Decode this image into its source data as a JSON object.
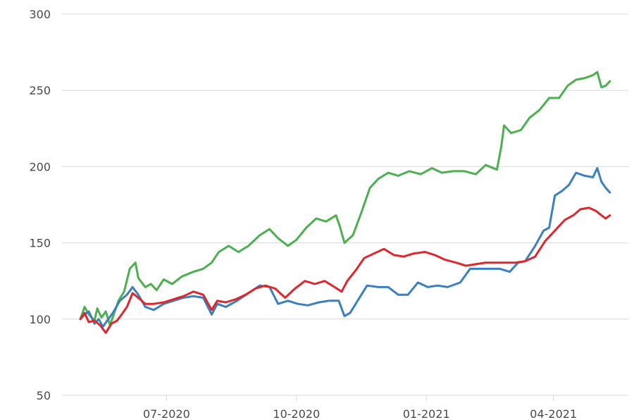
{
  "chart_data": {
    "type": "line",
    "title": "",
    "xlabel": "",
    "ylabel": "",
    "ylim": [
      50,
      300
    ],
    "xlim": [
      "2020-04-18",
      "2021-05-24"
    ],
    "yticks": [
      "50",
      "100",
      "150",
      "200",
      "250",
      "300"
    ],
    "xticks": [
      {
        "date": "2020-07-01",
        "label": "07-2020"
      },
      {
        "date": "2020-10-01",
        "label": "10-2020"
      },
      {
        "date": "2021-01-01",
        "label": "01-2021"
      },
      {
        "date": "2021-04-01",
        "label": "04-2021"
      }
    ],
    "grid": true,
    "legend": "none",
    "series": [
      {
        "color": "#4caf50",
        "points": [
          [
            "2020-05-01",
            100
          ],
          [
            "2020-05-04",
            108
          ],
          [
            "2020-05-07",
            103
          ],
          [
            "2020-05-11",
            99
          ],
          [
            "2020-05-13",
            107
          ],
          [
            "2020-05-16",
            101
          ],
          [
            "2020-05-19",
            105
          ],
          [
            "2020-05-22",
            96
          ],
          [
            "2020-05-25",
            104
          ],
          [
            "2020-05-28",
            112
          ],
          [
            "2020-06-01",
            118
          ],
          [
            "2020-06-05",
            133
          ],
          [
            "2020-06-09",
            137
          ],
          [
            "2020-06-11",
            127
          ],
          [
            "2020-06-16",
            121
          ],
          [
            "2020-06-20",
            123
          ],
          [
            "2020-06-24",
            119
          ],
          [
            "2020-06-29",
            126
          ],
          [
            "2020-07-05",
            123
          ],
          [
            "2020-07-12",
            128
          ],
          [
            "2020-07-20",
            131
          ],
          [
            "2020-07-27",
            133
          ],
          [
            "2020-08-02",
            137
          ],
          [
            "2020-08-07",
            144
          ],
          [
            "2020-08-14",
            148
          ],
          [
            "2020-08-21",
            144
          ],
          [
            "2020-08-28",
            148
          ],
          [
            "2020-09-05",
            155
          ],
          [
            "2020-09-12",
            159
          ],
          [
            "2020-09-18",
            153
          ],
          [
            "2020-09-25",
            148
          ],
          [
            "2020-10-01",
            152
          ],
          [
            "2020-10-08",
            160
          ],
          [
            "2020-10-15",
            166
          ],
          [
            "2020-10-22",
            164
          ],
          [
            "2020-10-29",
            168
          ],
          [
            "2020-11-01",
            160
          ],
          [
            "2020-11-04",
            150
          ],
          [
            "2020-11-10",
            155
          ],
          [
            "2020-11-16",
            170
          ],
          [
            "2020-11-22",
            186
          ],
          [
            "2020-11-28",
            192
          ],
          [
            "2020-12-05",
            196
          ],
          [
            "2020-12-12",
            194
          ],
          [
            "2020-12-20",
            197
          ],
          [
            "2020-12-28",
            195
          ],
          [
            "2021-01-05",
            199
          ],
          [
            "2021-01-12",
            196
          ],
          [
            "2021-01-20",
            197
          ],
          [
            "2021-01-28",
            197
          ],
          [
            "2021-02-05",
            195
          ],
          [
            "2021-02-12",
            201
          ],
          [
            "2021-02-20",
            198
          ],
          [
            "2021-02-23",
            213
          ],
          [
            "2021-02-25",
            227
          ],
          [
            "2021-03-02",
            222
          ],
          [
            "2021-03-09",
            224
          ],
          [
            "2021-03-15",
            232
          ],
          [
            "2021-03-22",
            237
          ],
          [
            "2021-03-29",
            245
          ],
          [
            "2021-04-05",
            245
          ],
          [
            "2021-04-11",
            253
          ],
          [
            "2021-04-17",
            257
          ],
          [
            "2021-04-23",
            258
          ],
          [
            "2021-04-29",
            260
          ],
          [
            "2021-05-02",
            262
          ],
          [
            "2021-05-05",
            252
          ],
          [
            "2021-05-08",
            253
          ],
          [
            "2021-05-11",
            256
          ]
        ]
      },
      {
        "color": "#3a7fc1",
        "points": [
          [
            "2020-05-01",
            100
          ],
          [
            "2020-05-04",
            103
          ],
          [
            "2020-05-07",
            105
          ],
          [
            "2020-05-11",
            97
          ],
          [
            "2020-05-14",
            100
          ],
          [
            "2020-05-17",
            95
          ],
          [
            "2020-05-20",
            99
          ],
          [
            "2020-05-24",
            104
          ],
          [
            "2020-05-29",
            112
          ],
          [
            "2020-06-03",
            116
          ],
          [
            "2020-06-07",
            121
          ],
          [
            "2020-06-11",
            116
          ],
          [
            "2020-06-16",
            108
          ],
          [
            "2020-06-22",
            106
          ],
          [
            "2020-06-29",
            110
          ],
          [
            "2020-07-06",
            112
          ],
          [
            "2020-07-13",
            114
          ],
          [
            "2020-07-20",
            115
          ],
          [
            "2020-07-27",
            114
          ],
          [
            "2020-08-02",
            103
          ],
          [
            "2020-08-06",
            110
          ],
          [
            "2020-08-12",
            108
          ],
          [
            "2020-08-20",
            112
          ],
          [
            "2020-08-28",
            117
          ],
          [
            "2020-09-05",
            122
          ],
          [
            "2020-09-12",
            121
          ],
          [
            "2020-09-18",
            110
          ],
          [
            "2020-09-25",
            112
          ],
          [
            "2020-10-02",
            110
          ],
          [
            "2020-10-09",
            109
          ],
          [
            "2020-10-17",
            111
          ],
          [
            "2020-10-24",
            112
          ],
          [
            "2020-10-31",
            112
          ],
          [
            "2020-11-04",
            102
          ],
          [
            "2020-11-08",
            104
          ],
          [
            "2020-11-14",
            113
          ],
          [
            "2020-11-20",
            122
          ],
          [
            "2020-11-28",
            121
          ],
          [
            "2020-12-05",
            121
          ],
          [
            "2020-12-12",
            116
          ],
          [
            "2020-12-19",
            116
          ],
          [
            "2020-12-26",
            124
          ],
          [
            "2021-01-02",
            121
          ],
          [
            "2021-01-09",
            122
          ],
          [
            "2021-01-16",
            121
          ],
          [
            "2021-01-25",
            124
          ],
          [
            "2021-02-01",
            133
          ],
          [
            "2021-02-08",
            133
          ],
          [
            "2021-02-15",
            133
          ],
          [
            "2021-02-22",
            133
          ],
          [
            "2021-03-01",
            131
          ],
          [
            "2021-03-07",
            137
          ],
          [
            "2021-03-12",
            138
          ],
          [
            "2021-03-19",
            148
          ],
          [
            "2021-03-25",
            158
          ],
          [
            "2021-03-29",
            160
          ],
          [
            "2021-04-02",
            181
          ],
          [
            "2021-04-07",
            184
          ],
          [
            "2021-04-12",
            188
          ],
          [
            "2021-04-17",
            196
          ],
          [
            "2021-04-23",
            194
          ],
          [
            "2021-04-29",
            193
          ],
          [
            "2021-05-02",
            199
          ],
          [
            "2021-05-05",
            190
          ],
          [
            "2021-05-08",
            186
          ],
          [
            "2021-05-11",
            183
          ]
        ]
      },
      {
        "color": "#e0262d",
        "points": [
          [
            "2020-05-01",
            100
          ],
          [
            "2020-05-04",
            104
          ],
          [
            "2020-05-07",
            98
          ],
          [
            "2020-05-11",
            99
          ],
          [
            "2020-05-15",
            96
          ],
          [
            "2020-05-19",
            91
          ],
          [
            "2020-05-23",
            97
          ],
          [
            "2020-05-27",
            99
          ],
          [
            "2020-05-31",
            104
          ],
          [
            "2020-06-03",
            108
          ],
          [
            "2020-06-07",
            117
          ],
          [
            "2020-06-11",
            114
          ],
          [
            "2020-06-16",
            110
          ],
          [
            "2020-06-22",
            110
          ],
          [
            "2020-06-29",
            111
          ],
          [
            "2020-07-06",
            113
          ],
          [
            "2020-07-13",
            115
          ],
          [
            "2020-07-20",
            118
          ],
          [
            "2020-07-27",
            116
          ],
          [
            "2020-08-02",
            106
          ],
          [
            "2020-08-06",
            112
          ],
          [
            "2020-08-12",
            111
          ],
          [
            "2020-08-19",
            113
          ],
          [
            "2020-08-26",
            116
          ],
          [
            "2020-09-02",
            120
          ],
          [
            "2020-09-09",
            122
          ],
          [
            "2020-09-16",
            120
          ],
          [
            "2020-09-23",
            114
          ],
          [
            "2020-09-30",
            120
          ],
          [
            "2020-10-07",
            125
          ],
          [
            "2020-10-14",
            123
          ],
          [
            "2020-10-21",
            125
          ],
          [
            "2020-10-28",
            121
          ],
          [
            "2020-11-02",
            118
          ],
          [
            "2020-11-06",
            125
          ],
          [
            "2020-11-12",
            132
          ],
          [
            "2020-11-18",
            140
          ],
          [
            "2020-11-25",
            143
          ],
          [
            "2020-12-02",
            146
          ],
          [
            "2020-12-09",
            142
          ],
          [
            "2020-12-16",
            141
          ],
          [
            "2020-12-23",
            143
          ],
          [
            "2020-12-31",
            144
          ],
          [
            "2021-01-07",
            142
          ],
          [
            "2021-01-14",
            139
          ],
          [
            "2021-01-22",
            137
          ],
          [
            "2021-01-29",
            135
          ],
          [
            "2021-02-05",
            136
          ],
          [
            "2021-02-12",
            137
          ],
          [
            "2021-02-19",
            137
          ],
          [
            "2021-02-26",
            137
          ],
          [
            "2021-03-05",
            137
          ],
          [
            "2021-03-12",
            138
          ],
          [
            "2021-03-19",
            141
          ],
          [
            "2021-03-26",
            151
          ],
          [
            "2021-04-02",
            158
          ],
          [
            "2021-04-09",
            165
          ],
          [
            "2021-04-15",
            168
          ],
          [
            "2021-04-20",
            172
          ],
          [
            "2021-04-26",
            173
          ],
          [
            "2021-05-01",
            171
          ],
          [
            "2021-05-05",
            168
          ],
          [
            "2021-05-08",
            166
          ],
          [
            "2021-05-11",
            168
          ]
        ]
      }
    ]
  }
}
